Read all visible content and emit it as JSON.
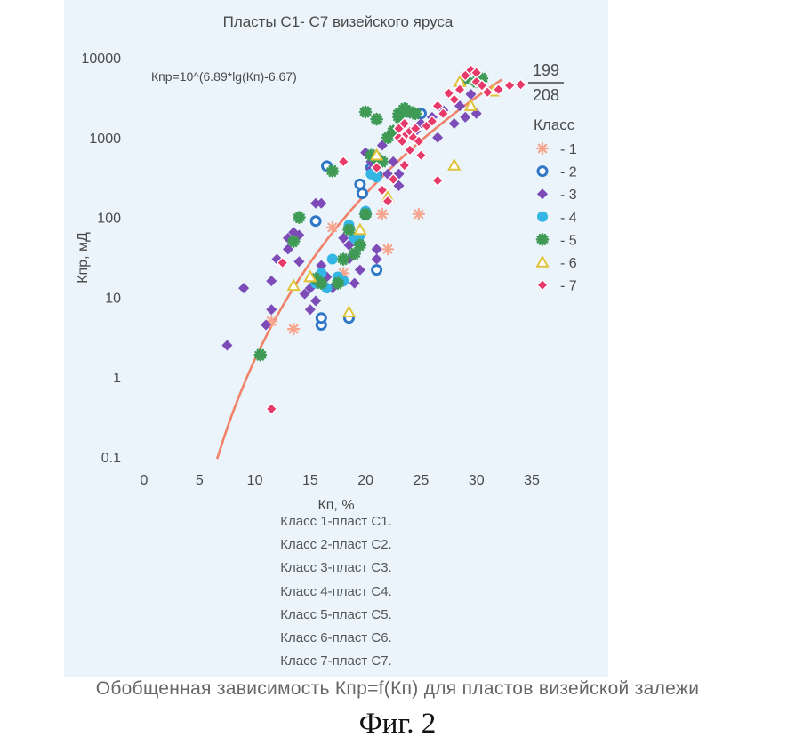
{
  "chart_data": {
    "type": "scatter",
    "title": "Пласты С1- С7 визейского яруса",
    "xlabel": "Кп, %",
    "ylabel": "Кпр, мД",
    "xlim": [
      0,
      35
    ],
    "ylim": [
      0.1,
      10000
    ],
    "yscale": "log",
    "x_ticks": [
      "0",
      "5",
      "10",
      "15",
      "20",
      "25",
      "30",
      "35"
    ],
    "y_ticks": [
      "0.1",
      "1",
      "10",
      "100",
      "1000",
      "10000"
    ],
    "grid": false,
    "equation": "Кпр=10^(6.89*lg(Кп)-6.67)",
    "fraction": {
      "numerator": "199",
      "denominator": "208"
    },
    "legend_title": "Класс",
    "legend_position": "right",
    "trend": {
      "name": "Кпр=10^(6.89*lg(Кп)-6.67)",
      "color": "#f0826a",
      "a": 6.89,
      "b": -6.67,
      "x_from": 6.6,
      "x_to": 32.3
    },
    "series": [
      {
        "name": "- 1",
        "marker": "star",
        "color": "#f7a58f",
        "points": [
          [
            11.5,
            5
          ],
          [
            13.5,
            4
          ],
          [
            17,
            75
          ],
          [
            18,
            20
          ],
          [
            21.5,
            110
          ],
          [
            22,
            40
          ],
          [
            24.8,
            110
          ],
          [
            13.5,
            4
          ]
        ]
      },
      {
        "name": "- 2",
        "marker": "ring",
        "color": "#2f78c8",
        "points": [
          [
            15.5,
            90
          ],
          [
            16,
            4.5
          ],
          [
            16,
            5.5
          ],
          [
            16.5,
            440
          ],
          [
            18.5,
            5.5
          ],
          [
            19.5,
            260
          ],
          [
            19.7,
            200
          ],
          [
            20,
            110
          ],
          [
            20.5,
            420
          ],
          [
            21,
            340
          ],
          [
            21,
            22
          ],
          [
            25,
            2000
          ]
        ]
      },
      {
        "name": "- 3",
        "marker": "diamond",
        "color": "#7c4bb8",
        "points": [
          [
            7.5,
            2.5
          ],
          [
            9,
            13
          ],
          [
            11,
            4.5
          ],
          [
            11.5,
            7
          ],
          [
            11.5,
            16
          ],
          [
            12,
            30
          ],
          [
            13,
            55
          ],
          [
            13,
            40
          ],
          [
            13.5,
            65
          ],
          [
            14,
            60
          ],
          [
            14,
            28
          ],
          [
            14.5,
            11
          ],
          [
            15,
            13
          ],
          [
            15,
            7
          ],
          [
            15.5,
            150
          ],
          [
            15.5,
            9
          ],
          [
            16,
            150
          ],
          [
            16,
            25
          ],
          [
            16.5,
            18
          ],
          [
            17,
            13
          ],
          [
            17.5,
            17
          ],
          [
            18,
            55
          ],
          [
            18.5,
            45
          ],
          [
            18.5,
            30
          ],
          [
            19,
            15
          ],
          [
            19.5,
            22
          ],
          [
            20,
            650
          ],
          [
            20.5,
            500
          ],
          [
            20.5,
            400
          ],
          [
            21,
            40
          ],
          [
            21,
            30
          ],
          [
            21.5,
            800
          ],
          [
            22,
            350
          ],
          [
            22.5,
            500
          ],
          [
            23,
            350
          ],
          [
            23,
            250
          ],
          [
            24,
            2000
          ],
          [
            25,
            1500
          ],
          [
            26,
            1800
          ],
          [
            27,
            2200
          ],
          [
            27.5,
            3500
          ],
          [
            28,
            1500
          ],
          [
            28.5,
            2500
          ],
          [
            29,
            1800
          ],
          [
            29.5,
            3500
          ],
          [
            30,
            2000
          ],
          [
            30.5,
            4500
          ],
          [
            31,
            3800
          ],
          [
            24.5,
            1200
          ],
          [
            26.5,
            1000
          ]
        ]
      },
      {
        "name": "- 4",
        "marker": "circle",
        "color": "#34b6e4",
        "points": [
          [
            15.5,
            15
          ],
          [
            16,
            20
          ],
          [
            16.5,
            13
          ],
          [
            17,
            30
          ],
          [
            17.5,
            18
          ],
          [
            18,
            16
          ],
          [
            18.5,
            80
          ],
          [
            19,
            55
          ],
          [
            19.5,
            60
          ],
          [
            20,
            120
          ],
          [
            20.5,
            350
          ],
          [
            21,
            320
          ]
        ]
      },
      {
        "name": "- 5",
        "marker": "burst",
        "color": "#3e9a55",
        "points": [
          [
            10.5,
            1.9
          ],
          [
            13.5,
            50
          ],
          [
            14,
            100
          ],
          [
            15.5,
            17
          ],
          [
            16,
            15
          ],
          [
            17,
            380
          ],
          [
            17.5,
            15
          ],
          [
            18,
            30
          ],
          [
            18.5,
            70
          ],
          [
            19,
            35
          ],
          [
            19.5,
            45
          ],
          [
            20,
            110
          ],
          [
            20.5,
            600
          ],
          [
            21,
            550
          ],
          [
            21.5,
            500
          ],
          [
            22,
            1000
          ],
          [
            22.5,
            1200
          ],
          [
            23,
            1800
          ],
          [
            23,
            2000
          ],
          [
            23.5,
            2300
          ],
          [
            24,
            2100
          ],
          [
            24.5,
            2000
          ],
          [
            20,
            2100
          ],
          [
            21,
            1700
          ],
          [
            29,
            5500
          ],
          [
            30,
            5000
          ],
          [
            30.5,
            5500
          ]
        ]
      },
      {
        "name": "- 6",
        "marker": "triangle",
        "color": "#e1c23a",
        "points": [
          [
            13.5,
            14
          ],
          [
            15,
            18
          ],
          [
            18.5,
            6.5
          ],
          [
            19.5,
            70
          ],
          [
            21,
            600
          ],
          [
            22,
            180
          ],
          [
            28,
            450
          ],
          [
            28.5,
            5000
          ],
          [
            29.5,
            2500
          ],
          [
            31.5,
            3800
          ]
        ]
      },
      {
        "name": "- 7",
        "marker": "diamond-outline",
        "color": "#e83a6a",
        "points": [
          [
            11.5,
            0.4
          ],
          [
            12.5,
            27
          ],
          [
            18,
            500
          ],
          [
            21,
            420
          ],
          [
            21.5,
            220
          ],
          [
            22,
            160
          ],
          [
            22.5,
            300
          ],
          [
            23,
            1000
          ],
          [
            23,
            1300
          ],
          [
            23.3,
            900
          ],
          [
            23.5,
            1500
          ],
          [
            23.7,
            1100
          ],
          [
            24,
            1200
          ],
          [
            24.3,
            1000
          ],
          [
            24.5,
            1300
          ],
          [
            24.8,
            900
          ],
          [
            23.5,
            450
          ],
          [
            24,
            700
          ],
          [
            25,
            600
          ],
          [
            25.5,
            1400
          ],
          [
            26,
            1600
          ],
          [
            26.5,
            2500
          ],
          [
            27,
            2000
          ],
          [
            27.5,
            3600
          ],
          [
            28,
            3000
          ],
          [
            28.5,
            4000
          ],
          [
            29,
            6000
          ],
          [
            29.5,
            7000
          ],
          [
            30,
            6500
          ],
          [
            30,
            5000
          ],
          [
            30.5,
            4500
          ],
          [
            31,
            3700
          ],
          [
            32,
            4000
          ],
          [
            33,
            4500
          ],
          [
            34,
            4600
          ],
          [
            26.5,
            290
          ]
        ]
      }
    ]
  },
  "notes": [
    "Класс 1-пласт С1.",
    "Класс 2-пласт С2.",
    "Класс 3-пласт С3.",
    "Класс 4-пласт С4.",
    "Класс 5-пласт С5.",
    "Класс 6-пласт С6.",
    "Класс 7-пласт С7."
  ],
  "caption": "Обобщенная зависимость Кпр=f(Кп) для пластов визейской залежи",
  "figure_label": "Фиг. 2",
  "colors": {
    "panel_background": "#eaf4fa",
    "trend_line": "#f0826a",
    "text": "#4a4a4a"
  }
}
